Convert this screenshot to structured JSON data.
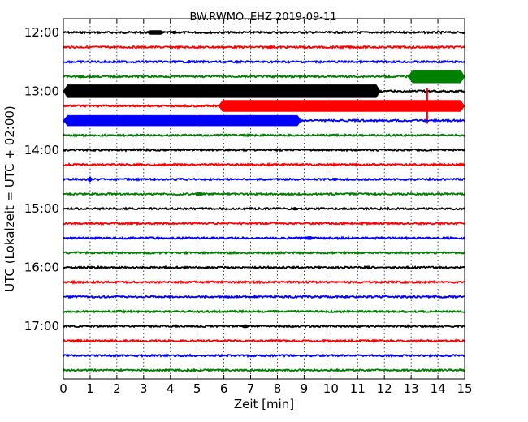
{
  "chart_data": {
    "type": "line",
    "title": "BW.RWMO..EHZ 2019-09-11",
    "xlabel": "Zeit  [min]",
    "ylabel": "UTC (Lokalzeit = UTC + 02:00)",
    "xlim": [
      0,
      15
    ],
    "x_ticks": [
      0,
      1,
      2,
      3,
      4,
      5,
      6,
      7,
      8,
      9,
      10,
      11,
      12,
      13,
      14,
      15
    ],
    "x_tick_labels": [
      "0",
      "1",
      "2",
      "3",
      "4",
      "5",
      "6",
      "7",
      "8",
      "9",
      "10",
      "11",
      "12",
      "13",
      "14",
      "15"
    ],
    "y_tick_labels": [
      "12:00",
      "13:00",
      "14:00",
      "15:00",
      "16:00",
      "17:00"
    ],
    "grid": true,
    "colors": {
      "black": "#000000",
      "red": "#ff0000",
      "blue": "#0000ff",
      "green": "#008000"
    },
    "color_cycle": [
      "black",
      "red",
      "blue",
      "green"
    ],
    "traces": [
      {
        "start": "12:00",
        "color": "black",
        "bursts": [
          [
            3.1,
            0.7,
            5
          ],
          [
            4.0,
            0.3,
            4
          ]
        ]
      },
      {
        "start": "12:15",
        "color": "red",
        "bursts": [
          [
            7.6,
            0.3,
            4
          ]
        ]
      },
      {
        "start": "12:30",
        "color": "blue",
        "bursts": [
          [
            4.6,
            0.2,
            4
          ],
          [
            6.4,
            0.2,
            3
          ]
        ]
      },
      {
        "start": "12:45",
        "color": "green",
        "bursts": [
          [
            0.5,
            0.3,
            4
          ],
          [
            12.9,
            2.1,
            16
          ]
        ]
      },
      {
        "start": "13:00",
        "color": "black",
        "bursts": [
          [
            0.0,
            11.85,
            16
          ]
        ]
      },
      {
        "start": "13:15",
        "color": "red",
        "bursts": [
          [
            5.8,
            9.2,
            14
          ]
        ],
        "spikes": [
          [
            13.6,
            22
          ]
        ]
      },
      {
        "start": "13:30",
        "color": "blue",
        "bursts": [
          [
            0.0,
            8.9,
            13
          ]
        ]
      },
      {
        "start": "13:45",
        "color": "green",
        "bursts": [
          [
            6.8,
            0.3,
            3
          ]
        ]
      },
      {
        "start": "14:00",
        "color": "black",
        "bursts": [
          [
            3.7,
            0.2,
            3
          ]
        ]
      },
      {
        "start": "14:15",
        "color": "red",
        "bursts": [
          [
            14.7,
            0.3,
            4
          ],
          [
            8.1,
            0.2,
            3
          ]
        ]
      },
      {
        "start": "14:30",
        "color": "blue",
        "bursts": [
          [
            0.9,
            0.2,
            7
          ],
          [
            3.3,
            0.2,
            4
          ],
          [
            10.0,
            0.3,
            4
          ]
        ]
      },
      {
        "start": "14:45",
        "color": "green",
        "bursts": [
          [
            4.9,
            0.4,
            4
          ]
        ]
      },
      {
        "start": "15:00",
        "color": "black",
        "bursts": [
          [
            8.5,
            0.3,
            4
          ]
        ]
      },
      {
        "start": "15:15",
        "color": "red",
        "bursts": [
          [
            11.5,
            0.3,
            3
          ]
        ]
      },
      {
        "start": "15:30",
        "color": "blue",
        "bursts": [
          [
            9.0,
            0.4,
            4
          ]
        ]
      },
      {
        "start": "15:45",
        "color": "green",
        "bursts": [
          [
            10.9,
            0.2,
            4
          ],
          [
            8.7,
            0.3,
            3
          ]
        ]
      },
      {
        "start": "16:00",
        "color": "black",
        "bursts": [
          [
            5.3,
            0.2,
            3
          ]
        ]
      },
      {
        "start": "16:15",
        "color": "red",
        "bursts": [
          [
            4.1,
            0.2,
            3
          ]
        ]
      },
      {
        "start": "16:30",
        "color": "blue",
        "bursts": [
          [
            7.0,
            0.3,
            3
          ]
        ]
      },
      {
        "start": "16:45",
        "color": "green",
        "bursts": []
      },
      {
        "start": "17:00",
        "color": "black",
        "bursts": [
          [
            6.6,
            0.4,
            4
          ]
        ]
      },
      {
        "start": "17:15",
        "color": "red",
        "bursts": [
          [
            0.4,
            0.3,
            4
          ]
        ]
      },
      {
        "start": "17:30",
        "color": "blue",
        "bursts": []
      },
      {
        "start": "17:45",
        "color": "green",
        "bursts": []
      }
    ]
  }
}
